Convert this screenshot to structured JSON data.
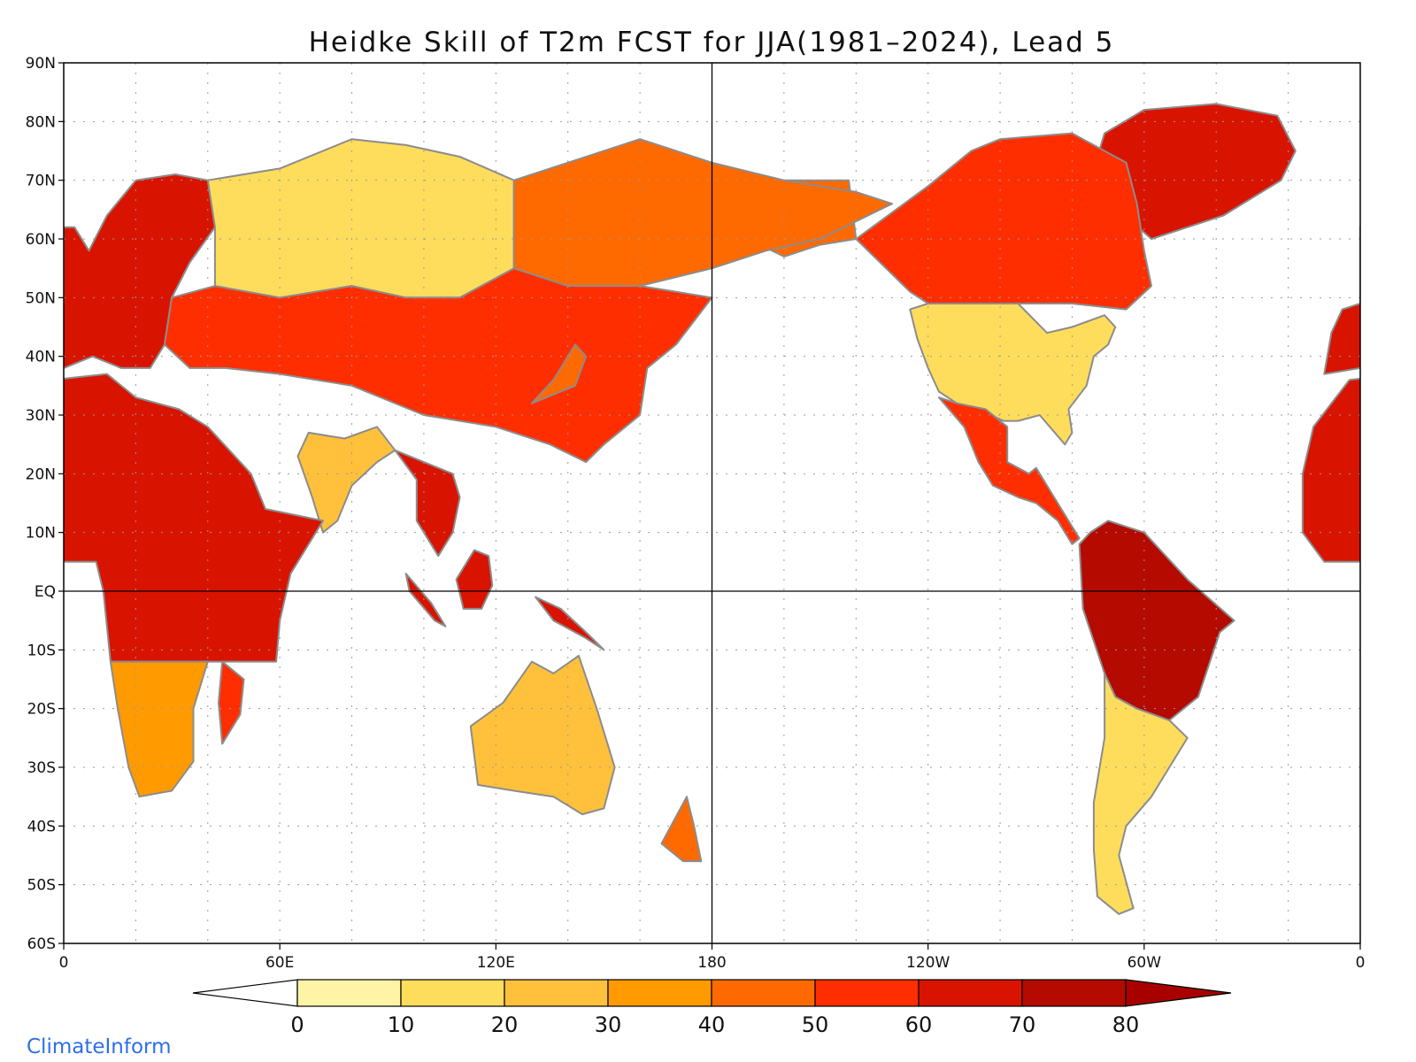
{
  "title": "Heidke Skill of T2m FCST for JJA(1981–2024), Lead 5",
  "credit": "ClimateInform",
  "map": {
    "projection": "equirectangular, centered on 180",
    "lat_range": [
      -60,
      90
    ],
    "lon_range": [
      0,
      360
    ],
    "lat_tick_labels": [
      "90N",
      "80N",
      "70N",
      "60N",
      "50N",
      "40N",
      "30N",
      "20N",
      "10N",
      "EQ",
      "10S",
      "20S",
      "30S",
      "40S",
      "50S",
      "60S"
    ],
    "lon_tick_labels": [
      "0",
      "60E",
      "120E",
      "180",
      "120W",
      "60W",
      "0"
    ],
    "grid": "dotted",
    "reference_lines": [
      "Equator",
      "180 meridian"
    ],
    "land_outline_color": "#8c8c8c",
    "ocean_color": "#ffffff"
  },
  "colorbar": {
    "levels": [
      "0",
      "10",
      "20",
      "30",
      "40",
      "50",
      "60",
      "70",
      "80"
    ],
    "colors": [
      "#ffffff",
      "#fff4a6",
      "#ffdd5c",
      "#ffc13b",
      "#ff9a00",
      "#ff6a00",
      "#ff2e00",
      "#d81400",
      "#b40a00",
      "#a80000"
    ],
    "extend": "both"
  },
  "regions": [
    {
      "name": "Greenland",
      "level": 65
    },
    {
      "name": "Canada",
      "level": 50
    },
    {
      "name": "Alaska",
      "level": 45
    },
    {
      "name": "United States",
      "level": 12
    },
    {
      "name": "Mexico & Central America",
      "level": 55
    },
    {
      "name": "South America (Amazon)",
      "level": 70
    },
    {
      "name": "Patagonia",
      "level": 15
    },
    {
      "name": "Europe",
      "level": 60
    },
    {
      "name": "West Siberia",
      "level": 10
    },
    {
      "name": "East Siberia",
      "level": 45
    },
    {
      "name": "Central Asia & China",
      "level": 55
    },
    {
      "name": "India",
      "level": 25
    },
    {
      "name": "Southeast Asia",
      "level": 65
    },
    {
      "name": "Africa",
      "level": 60
    },
    {
      "name": "Southern Africa",
      "level": 30
    },
    {
      "name": "Madagascar",
      "level": 55
    },
    {
      "name": "Australia",
      "level": 25
    },
    {
      "name": "New Zealand",
      "level": 45
    }
  ]
}
